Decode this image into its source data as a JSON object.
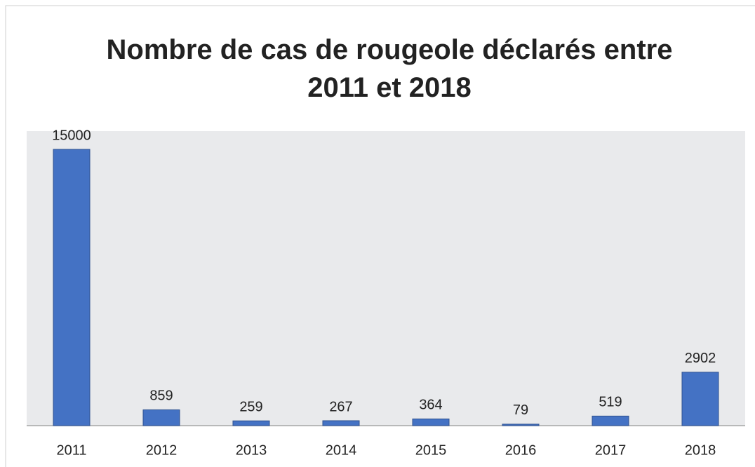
{
  "chart_data": {
    "type": "bar",
    "title": "Nombre de cas de rougeole déclarés entre 2011 et 2018",
    "categories": [
      "2011",
      "2012",
      "2013",
      "2014",
      "2015",
      "2016",
      "2017",
      "2018"
    ],
    "values": [
      15000,
      859,
      259,
      267,
      364,
      79,
      519,
      2902
    ],
    "color": "#4472c4",
    "grid": false
  }
}
